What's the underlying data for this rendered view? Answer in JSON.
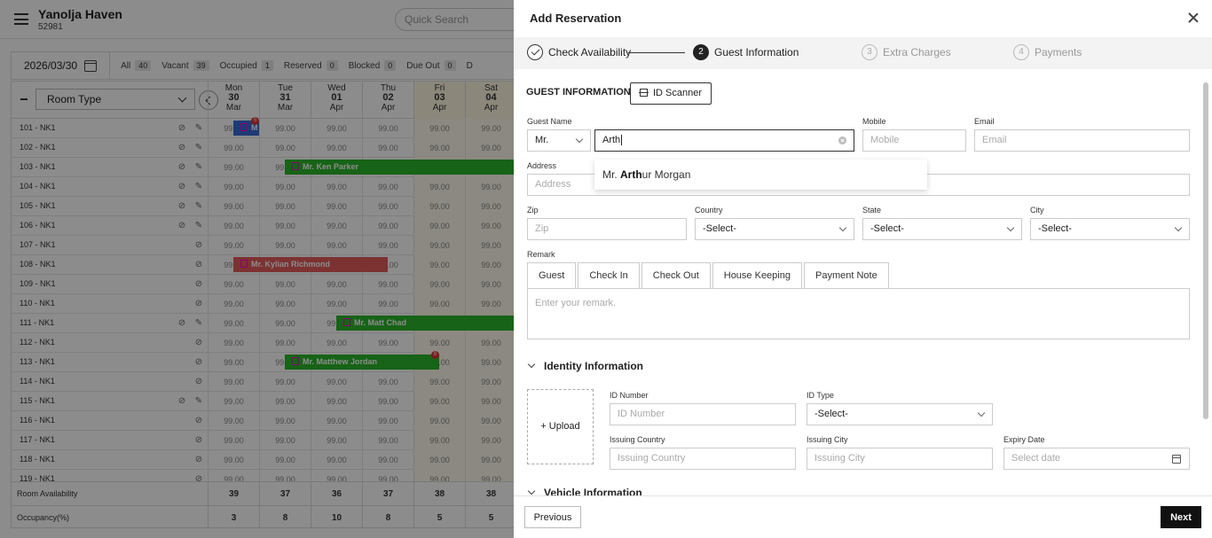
{
  "app": {
    "hotel_name": "Yanolja Haven",
    "hotel_code": "52981",
    "quick_search_placeholder": "Quick Search"
  },
  "filters": {
    "date": "2026/03/30",
    "items": [
      {
        "label": "All",
        "count": "40"
      },
      {
        "label": "Vacant",
        "count": "39"
      },
      {
        "label": "Occupied",
        "count": "1"
      },
      {
        "label": "Reserved",
        "count": "0"
      },
      {
        "label": "Blocked",
        "count": "0"
      },
      {
        "label": "Due Out",
        "count": "0"
      },
      {
        "label": "D",
        "count": ""
      }
    ]
  },
  "grid": {
    "room_type_label": "Room Type",
    "days": [
      {
        "dow": "Mon",
        "day": "30",
        "mon": "Mar",
        "weekend": false
      },
      {
        "dow": "Tue",
        "day": "31",
        "mon": "Mar",
        "weekend": false
      },
      {
        "dow": "Wed",
        "day": "01",
        "mon": "Apr",
        "weekend": false
      },
      {
        "dow": "Thu",
        "day": "02",
        "mon": "Apr",
        "weekend": false
      },
      {
        "dow": "Fri",
        "day": "03",
        "mon": "Apr",
        "weekend": true
      },
      {
        "dow": "Sat",
        "day": "04",
        "mon": "Apr",
        "weekend": true
      }
    ],
    "rate": "99.00",
    "rooms": [
      {
        "name": "101 - NK1",
        "icons": 2
      },
      {
        "name": "102 - NK1",
        "icons": 2
      },
      {
        "name": "103 - NK1",
        "icons": 2
      },
      {
        "name": "104 - NK1",
        "icons": 2
      },
      {
        "name": "105 - NK1",
        "icons": 2
      },
      {
        "name": "106 - NK1",
        "icons": 2
      },
      {
        "name": "107 - NK1",
        "icons": 1
      },
      {
        "name": "108 - NK1",
        "icons": 1
      },
      {
        "name": "109 - NK1",
        "icons": 1
      },
      {
        "name": "110 - NK1",
        "icons": 1
      },
      {
        "name": "111 - NK1",
        "icons": 2
      },
      {
        "name": "112 - NK1",
        "icons": 1
      },
      {
        "name": "113 - NK1",
        "icons": 1
      },
      {
        "name": "114 - NK1",
        "icons": 1
      },
      {
        "name": "115 - NK1",
        "icons": 2
      },
      {
        "name": "116 - NK1",
        "icons": 1
      },
      {
        "name": "117 - NK1",
        "icons": 1
      },
      {
        "name": "118 - NK1",
        "icons": 1
      },
      {
        "name": "119 - NK1",
        "icons": 1
      }
    ],
    "bookings": [
      {
        "row": 0,
        "start_day": 0,
        "span_days": 0.5,
        "guest": "M",
        "color": "blue",
        "badge": "5"
      },
      {
        "row": 2,
        "start_day": 1,
        "span_days": 5,
        "guest": "Mr. Ken Parker",
        "color": "green",
        "badge": ""
      },
      {
        "row": 7,
        "start_day": 0.5,
        "span_days": 3,
        "guest": "Mr. Kylian Richmond",
        "color": "red",
        "badge": ""
      },
      {
        "row": 10,
        "start_day": 2,
        "span_days": 4,
        "guest": "Mr. Matt Chad",
        "color": "green",
        "badge": ""
      },
      {
        "row": 12,
        "start_day": 1,
        "span_days": 3,
        "guest": "Mr. Matthew Jordan",
        "color": "green",
        "badge": "8"
      }
    ],
    "availability_label": "Room Availability",
    "availability": [
      "39",
      "37",
      "36",
      "37",
      "38",
      "38"
    ],
    "occupancy_label": "Occupancy(%)",
    "occupancy": [
      "3",
      "8",
      "10",
      "8",
      "5",
      "5"
    ]
  },
  "drawer": {
    "title": "Add Reservation",
    "steps": [
      {
        "num": "",
        "label": "Check Availability",
        "state": "done"
      },
      {
        "num": "2",
        "label": "Guest Information",
        "state": "active"
      },
      {
        "num": "3",
        "label": "Extra Charges",
        "state": "pending"
      },
      {
        "num": "4",
        "label": "Payments",
        "state": "pending"
      }
    ],
    "section_title": "GUEST INFORMATION",
    "id_scanner_label": "ID Scanner",
    "guest_name_label": "Guest Name",
    "salutation": "Mr.",
    "guest_name_value": "Arth",
    "mobile_label": "Mobile",
    "mobile_placeholder": "Mobile",
    "email_label": "Email",
    "email_placeholder": "Email",
    "address_label": "Address",
    "address_placeholder": "Address",
    "suggestion": {
      "prefix": "Mr. ",
      "match": "Arth",
      "rest": "ur Morgan"
    },
    "zip_label": "Zip",
    "zip_placeholder": "Zip",
    "country_label": "Country",
    "country_value": "-Select-",
    "state_label": "State",
    "state_value": "-Select-",
    "city_label": "City",
    "city_value": "-Select-",
    "remark_label": "Remark",
    "remark_tabs": [
      "Guest",
      "Check In",
      "Check Out",
      "House Keeping",
      "Payment Note"
    ],
    "remark_placeholder": "Enter your remark.",
    "identity_title": "Identity Information",
    "upload_label": "+ Upload",
    "id_number_label": "ID Number",
    "id_number_placeholder": "ID Number",
    "id_type_label": "ID Type",
    "id_type_value": "-Select-",
    "issuing_country_label": "Issuing Country",
    "issuing_country_placeholder": "Issuing Country",
    "issuing_city_label": "Issuing City",
    "issuing_city_placeholder": "Issuing City",
    "expiry_label": "Expiry Date",
    "expiry_placeholder": "Select date",
    "vehicle_title": "Vehicle Information",
    "previous_label": "Previous",
    "next_label": "Next"
  }
}
